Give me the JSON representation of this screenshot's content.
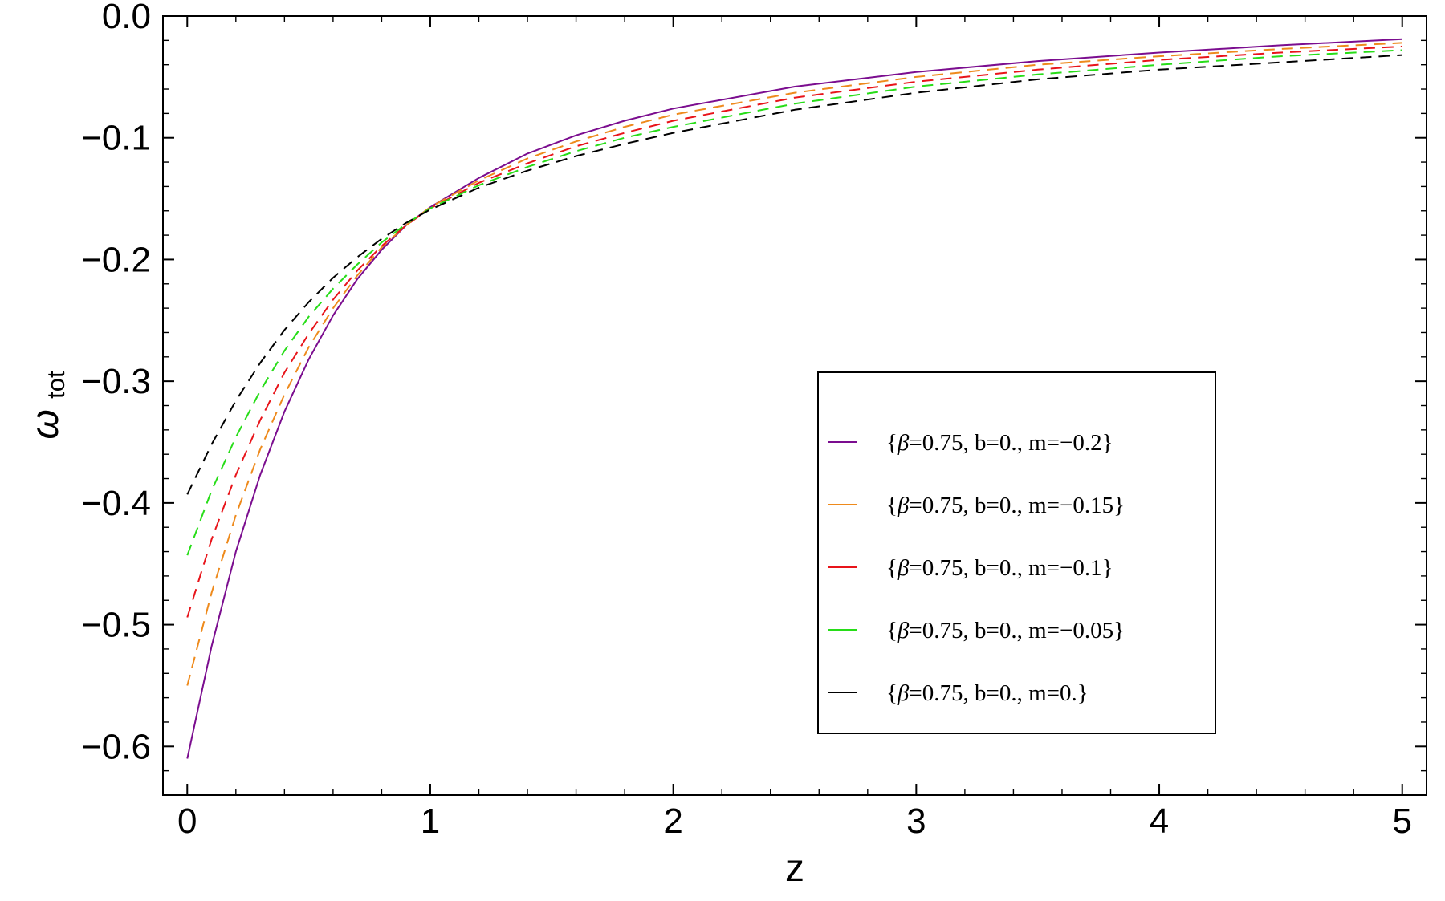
{
  "chart_data": {
    "type": "line",
    "title": "",
    "xlabel": "z",
    "ylabel": {
      "main": "ω",
      "sub": "tot"
    },
    "xlim": [
      -0.1,
      5.1
    ],
    "ylim": [
      -0.64,
      0.0
    ],
    "x_ticks": [
      0,
      1,
      2,
      3,
      4,
      5
    ],
    "x_tick_labels": [
      "0",
      "1",
      "2",
      "3",
      "4",
      "5"
    ],
    "y_ticks": [
      0.0,
      -0.1,
      -0.2,
      -0.3,
      -0.4,
      -0.5,
      -0.6
    ],
    "y_tick_labels": [
      "0.0",
      "−0.1",
      "−0.2",
      "−0.3",
      "−0.4",
      "−0.5",
      "−0.6"
    ],
    "grid": false,
    "legend_position": "lower-right",
    "x": [
      0,
      0.1,
      0.2,
      0.3,
      0.4,
      0.5,
      0.6,
      0.7,
      0.8,
      0.9,
      1.0,
      1.2,
      1.4,
      1.6,
      1.8,
      2.0,
      2.5,
      3.0,
      3.5,
      4.0,
      4.5,
      5.0
    ],
    "series": [
      {
        "name": "{β=0.75, b=0., m=−0.2}",
        "color": "#7b0d8f",
        "style": "solid",
        "values": [
          -0.61,
          -0.518,
          -0.44,
          -0.377,
          -0.325,
          -0.282,
          -0.246,
          -0.216,
          -0.192,
          -0.172,
          -0.157,
          -0.133,
          -0.113,
          -0.098,
          -0.086,
          -0.076,
          -0.058,
          -0.046,
          -0.037,
          -0.03,
          -0.024,
          -0.019
        ]
      },
      {
        "name": "{β=0.75, b=0., m=−0.15}",
        "color": "#ee8a1c",
        "style": "dashed",
        "values": [
          -0.55,
          -0.474,
          -0.41,
          -0.356,
          -0.311,
          -0.272,
          -0.24,
          -0.213,
          -0.19,
          -0.172,
          -0.157,
          -0.135,
          -0.117,
          -0.103,
          -0.091,
          -0.081,
          -0.063,
          -0.05,
          -0.04,
          -0.033,
          -0.027,
          -0.022
        ]
      },
      {
        "name": "{β=0.75, b=0., m=−0.1}",
        "color": "#e8141a",
        "style": "dashed",
        "values": [
          -0.494,
          -0.43,
          -0.377,
          -0.332,
          -0.293,
          -0.261,
          -0.233,
          -0.209,
          -0.189,
          -0.172,
          -0.158,
          -0.137,
          -0.121,
          -0.107,
          -0.096,
          -0.086,
          -0.067,
          -0.054,
          -0.044,
          -0.036,
          -0.03,
          -0.025
        ]
      },
      {
        "name": "{β=0.75, b=0., m=−0.05}",
        "color": "#27dd18",
        "style": "dashed",
        "values": [
          -0.443,
          -0.39,
          -0.346,
          -0.308,
          -0.275,
          -0.247,
          -0.224,
          -0.204,
          -0.186,
          -0.171,
          -0.158,
          -0.139,
          -0.124,
          -0.111,
          -0.1,
          -0.091,
          -0.072,
          -0.058,
          -0.048,
          -0.04,
          -0.033,
          -0.028
        ]
      },
      {
        "name": "{β=0.75, b=0., m=0.}",
        "color": "#000000",
        "style": "dashed",
        "values": [
          -0.393,
          -0.352,
          -0.316,
          -0.285,
          -0.258,
          -0.235,
          -0.215,
          -0.198,
          -0.183,
          -0.17,
          -0.159,
          -0.141,
          -0.127,
          -0.115,
          -0.105,
          -0.096,
          -0.077,
          -0.063,
          -0.052,
          -0.044,
          -0.038,
          -0.032
        ]
      }
    ]
  }
}
